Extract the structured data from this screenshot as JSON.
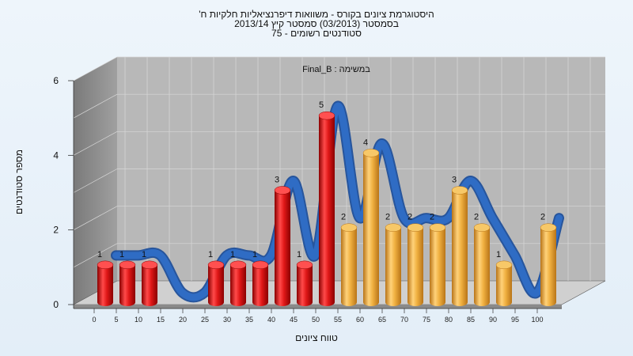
{
  "chart_data": {
    "type": "bar",
    "title": [
      "היסטוגרמת ציונים בקורס - משוואות דיפרנציאליות חלקיות ח'",
      "בסמסטר  (03/2013)  סמסטר קיץ 2013/14",
      "סטודנטים רשומים - 75"
    ],
    "annotation": "במשימה : Final_B",
    "xlabel": "טווח ציונים",
    "ylabel": "מספר סטודנטים",
    "ylim": [
      0,
      6
    ],
    "y_ticks": [
      "0",
      "2",
      "4",
      "6"
    ],
    "categories": [
      "0",
      "5",
      "10",
      "15",
      "20",
      "25",
      "30",
      "35",
      "40",
      "45",
      "50",
      "55",
      "60",
      "65",
      "70",
      "75",
      "80",
      "85",
      "90",
      "95",
      "100"
    ],
    "values": [
      1,
      1,
      1,
      0,
      0,
      1,
      1,
      1,
      3,
      1,
      5,
      2,
      4,
      2,
      2,
      2,
      3,
      2,
      1,
      0,
      2
    ],
    "bar_colors": {
      "failing": "#e01818",
      "passing": "#f0b040"
    },
    "passing_from": 55,
    "trend_line": {
      "color": "#2f6cc4"
    },
    "grid": true
  }
}
